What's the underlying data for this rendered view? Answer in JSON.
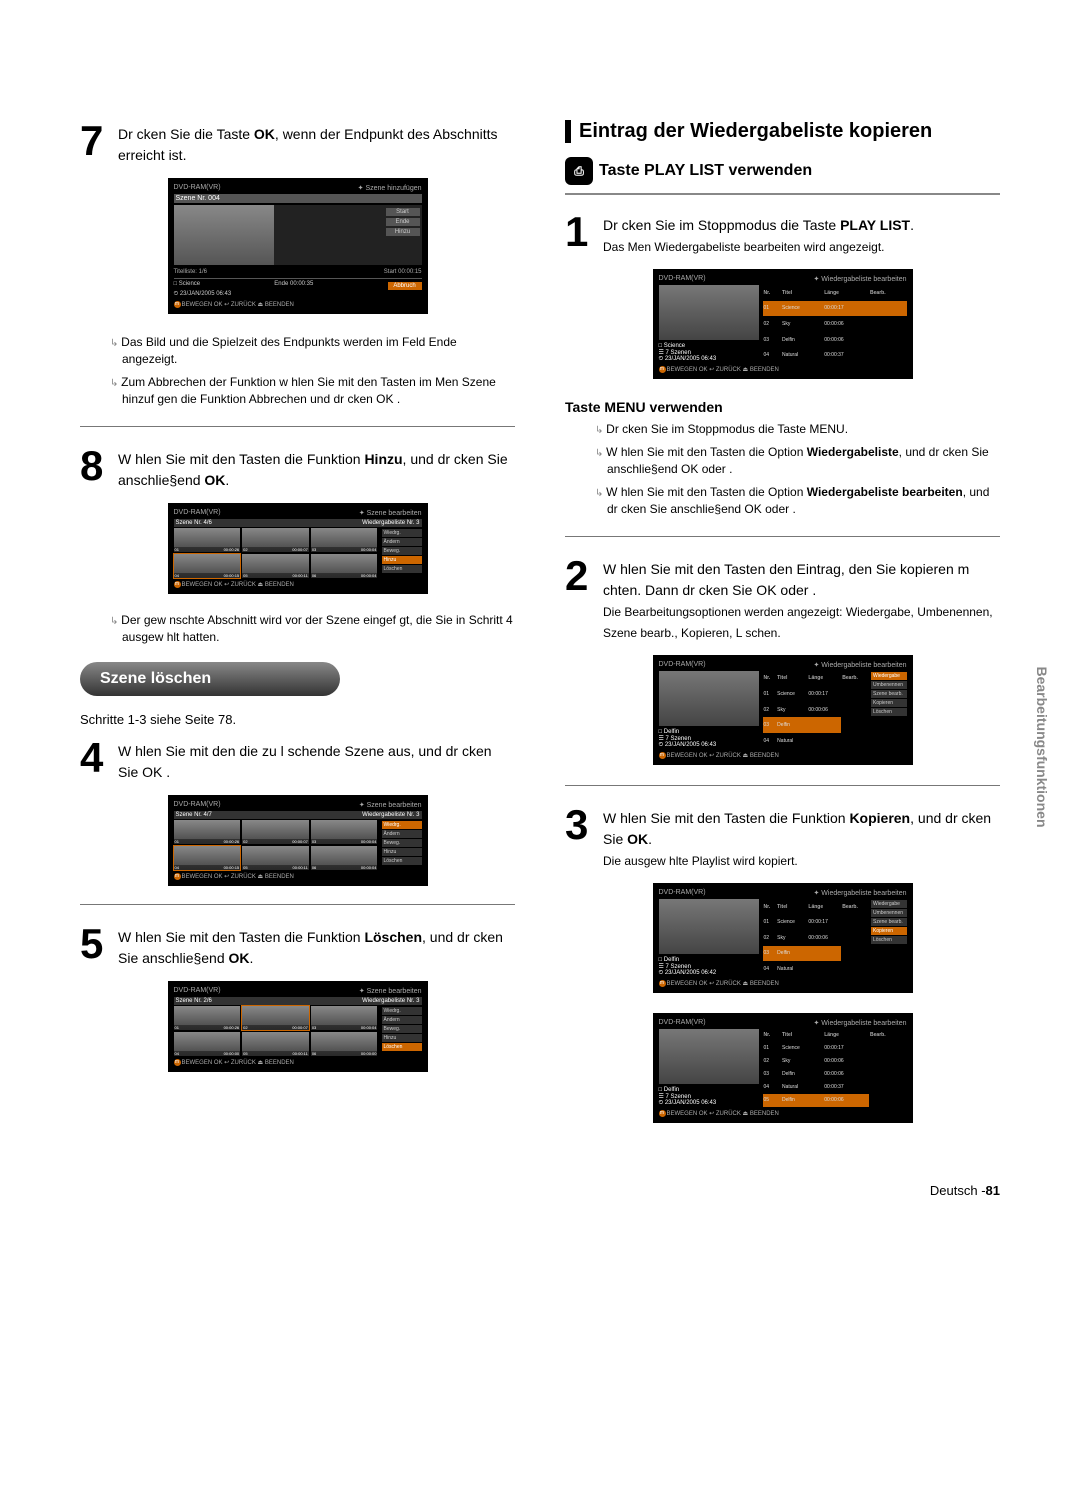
{
  "left": {
    "step7": {
      "num": "7",
      "text_a": "Dr cken Sie die Taste ",
      "text_b": "OK",
      "text_c": ", wenn der Endpunkt des Abschnitts erreicht ist."
    },
    "screen7": {
      "hdr_l": "DVD-RAM(VR)",
      "hdr_r": "✦ Szene hinzufügen",
      "sub": "Szene Nr. 004",
      "btn_start": "Start",
      "btn_ende": "Ende",
      "btn_abbr": "Abbruch",
      "btn_hinzu": "Hinzu",
      "row_tl": "Titelliste: 1/6",
      "row_start": "Start   00:00:15",
      "row_ende": "Ende   00:00:35",
      "info1": "□ Science",
      "info2": "⏲ 23/JAN/2005 06:43",
      "foot": "BEWEGEN   OK           ↩ ZURÜCK     ⏏ BEENDEN"
    },
    "b7a": "Das Bild und die Spielzeit des Endpunkts werden im Feld Ende angezeigt.",
    "b7b": "Zum Abbrechen der Funktion w hlen Sie mit den Tasten        im Men  Szene hinzuf gen  die Funktion Abbrechen  und dr cken  OK .",
    "step8": {
      "num": "8",
      "text_a": "W hlen Sie mit den Tasten          die Funktion ",
      "text_b": "Hinzu",
      "text_c": ", und dr cken Sie anschlie§end  ",
      "text_d": "OK",
      "text_e": "."
    },
    "screen8": {
      "hdr_l": "DVD-RAM(VR)",
      "hdr_r": "✦ Szene bearbeiten",
      "sub_l": "Szene Nr.        4/6",
      "sub_r": "Wiedergabeliste Nr.   3",
      "menu": [
        "Wiedrg.",
        "Ändern",
        "Beweg.",
        "Hinzu",
        "Löschen"
      ],
      "menu_hl": 3,
      "thumbs": [
        {
          "n": "01",
          "t": "00:00:26"
        },
        {
          "n": "02",
          "t": "00:00:07"
        },
        {
          "n": "03",
          "t": "00:00:04"
        },
        {
          "n": "04",
          "t": "00:00:15"
        },
        {
          "n": "05",
          "t": "00:00:11"
        },
        {
          "n": "06",
          "t": "00:00:04"
        }
      ],
      "sel": 3,
      "foot": "BEWEGEN  OK          ↩ ZURÜCK     ⏏ BEENDEN"
    },
    "b8": "Der gew nschte Abschnitt wird vor der Szene eingef gt, die Sie in Schritt 4 ausgew hlt hatten.",
    "pill": "Szene löschen",
    "sub": "Schritte 1-3 siehe Seite 78.",
    "step4": {
      "num": "4",
      "text": "W hlen Sie mit den                  die zu l schende Szene aus, und dr cken Sie   OK ."
    },
    "screen4": {
      "hdr_l": "DVD-RAM(VR)",
      "hdr_r": "✦ Szene bearbeiten",
      "sub_l": "Szene Nr.        4/7",
      "sub_r": "Wiedergabeliste Nr.   3",
      "menu": [
        "Wiedrg.",
        "Ändern",
        "Beweg.",
        "Hinzu",
        "Löschen"
      ],
      "menu_hl": 0,
      "thumbs": [
        {
          "n": "01",
          "t": "00:00:26"
        },
        {
          "n": "02",
          "t": "00:00:07"
        },
        {
          "n": "03",
          "t": "00:00:04"
        },
        {
          "n": "04",
          "t": "00:00:15"
        },
        {
          "n": "05",
          "t": "00:00:11"
        },
        {
          "n": "06",
          "t": "00:00:04"
        }
      ],
      "sel": 3,
      "foot": "BEWEGEN  OK          ↩ ZURÜCK     ⏏ BEENDEN"
    },
    "step5": {
      "num": "5",
      "text_a": "W hlen Sie mit den Tasten          die Funktion ",
      "text_b": "Löschen",
      "text_c": ", und dr cken Sie anschlie§end  ",
      "text_d": "OK",
      "text_e": "."
    },
    "screen5": {
      "hdr_l": "DVD-RAM(VR)",
      "hdr_r": "✦ Szene bearbeiten",
      "sub_l": "Szene Nr.        2/6",
      "sub_r": "Wiedergabeliste Nr.   3",
      "menu": [
        "Wiedrg.",
        "Ändern",
        "Beweg.",
        "Hinzu",
        "Löschen"
      ],
      "menu_hl": 4,
      "thumbs": [
        {
          "n": "01",
          "t": "00:00:26"
        },
        {
          "n": "02",
          "t": "00:00:07"
        },
        {
          "n": "03",
          "t": "00:00:04"
        },
        {
          "n": "04",
          "t": "00:00:00"
        },
        {
          "n": "05",
          "t": "00:00:11"
        },
        {
          "n": "06",
          "t": "00:00:00"
        }
      ],
      "sel": 1,
      "foot": "BEWEGEN  OK          ↩ ZURÜCK     ⏏ BEENDEN"
    }
  },
  "right": {
    "section": "Eintrag der Wiedergabeliste kopieren",
    "subhead_icon": "⎙",
    "subhead": "Taste PLAY LIST verwenden",
    "step1": {
      "num": "1",
      "line1_a": "Dr cken Sie im Stoppmodus die Taste  ",
      "line1_b": "PLAY LIST",
      "line1_c": ".",
      "line2": "Das Men  Wiedergabeliste bearbeiten wird angezeigt."
    },
    "screen1": {
      "hdr_l": "DVD-RAM(VR)",
      "hdr_r": "✦ Wiedergabeliste bearbeiten",
      "th": [
        "Nr.",
        "Titel",
        "Länge",
        "Bearb."
      ],
      "rows": [
        [
          "01",
          "Science",
          "00:00:17",
          ""
        ],
        [
          "02",
          "Sky",
          "00:00:06",
          ""
        ],
        [
          "03",
          "Delfin",
          "00:00:06",
          ""
        ],
        [
          "04",
          "Natural",
          "00:00:37",
          ""
        ]
      ],
      "hl_row": 0,
      "info1": "□ Science",
      "info2": "☰ 7 Szenen",
      "info3": "⏲ 23/JAN/2005 06:43",
      "foot": "BEWEGEN   OK          ↩ ZURÜCK     ⏏ BEENDEN"
    },
    "sub2": "Taste MENU verwenden",
    "m1": "Dr cken Sie im Stoppmodus die Taste  MENU.",
    "m2_a": "W hlen Sie mit den Tasten          die Option ",
    "m2_b": "Wiedergabeliste",
    "m2_c": ", und dr cken Sie anschlie§end  OK  oder    .",
    "m3_a": "W hlen Sie mit den Tasten          die Option ",
    "m3_b": "Wiedergabeliste bearbeiten",
    "m3_c": ", und dr cken Sie anschlie§end OK oder    .",
    "step2": {
      "num": "2",
      "text": "W hlen Sie mit den Tasten           den Eintrag, den Sie kopieren m chten. Dann dr cken Sie OK oder    .",
      "more": "Die Bearbeitungsoptionen werden angezeigt: Wiedergabe, Umbenennen, Szene bearb., Kopieren, L schen."
    },
    "screen2": {
      "hdr_l": "DVD-RAM(VR)",
      "hdr_r": "✦ Wiedergabeliste bearbeiten",
      "rows": [
        [
          "01",
          "Science",
          "00:00:17"
        ],
        [
          "02",
          "Sky",
          "00:00:06"
        ],
        [
          "03",
          "Delfin",
          ""
        ],
        [
          "04",
          "Natural",
          ""
        ]
      ],
      "hl_row": 2,
      "menu": [
        "Wiedergabe",
        "Umbenennen",
        "Szene bearb.",
        "Kopieren",
        "Löschen"
      ],
      "menu_hl": 0,
      "info1": "□ Delfin",
      "info2": "☰ 7 Szenen",
      "info3": "⏲ 23/JAN/2005 06:43",
      "foot": "BEWEGEN   OK          ↩ ZURÜCK     ⏏ BEENDEN"
    },
    "step3": {
      "num": "3",
      "text_a": "W hlen Sie mit den Tasten          die Funktion ",
      "text_b": "Kopieren",
      "text_c": ", und dr cken Sie  ",
      "text_d": "OK",
      "text_e": ".",
      "more": "Die ausgew hlte Playlist wird kopiert."
    },
    "screen3a": {
      "hdr_l": "DVD-RAM(VR)",
      "hdr_r": "✦ Wiedergabeliste bearbeiten",
      "rows": [
        [
          "01",
          "Science",
          "00:00:17"
        ],
        [
          "02",
          "Sky",
          "00:00:06"
        ],
        [
          "03",
          "Delfin",
          ""
        ],
        [
          "04",
          "Natural",
          ""
        ]
      ],
      "hl_row": 2,
      "menu": [
        "Wiedergabe",
        "Umbenennen",
        "Szene bearb.",
        "Kopieren",
        "Löschen"
      ],
      "menu_hl": 3,
      "info1": "□ Delfin",
      "info2": "☰ 7 Szenen",
      "info3": "⏲ 23/JAN/2005 06:42",
      "foot": "BEWEGEN   OK          ↩ ZURÜCK     ⏏ BEENDEN"
    },
    "screen3b": {
      "hdr_l": "DVD-RAM(VR)",
      "hdr_r": "✦ Wiedergabeliste bearbeiten",
      "rows": [
        [
          "01",
          "Science",
          "00:00:17"
        ],
        [
          "02",
          "Sky",
          "00:00:06"
        ],
        [
          "03",
          "Delfin",
          "00:00:06"
        ],
        [
          "04",
          "Natural",
          "00:00:37"
        ],
        [
          "05",
          "Delfin",
          "00:00:06"
        ]
      ],
      "hl_row": 4,
      "info1": "□ Delfin",
      "info2": "☰ 7 Szenen",
      "info3": "⏲ 23/JAN/2005 06:43",
      "foot": "BEWEGEN   OK          ↩ ZURÜCK     ⏏ BEENDEN"
    }
  },
  "vtab": "Bearbeitungsfunktionen",
  "footer_a": "Deutsch -",
  "footer_b": "81"
}
